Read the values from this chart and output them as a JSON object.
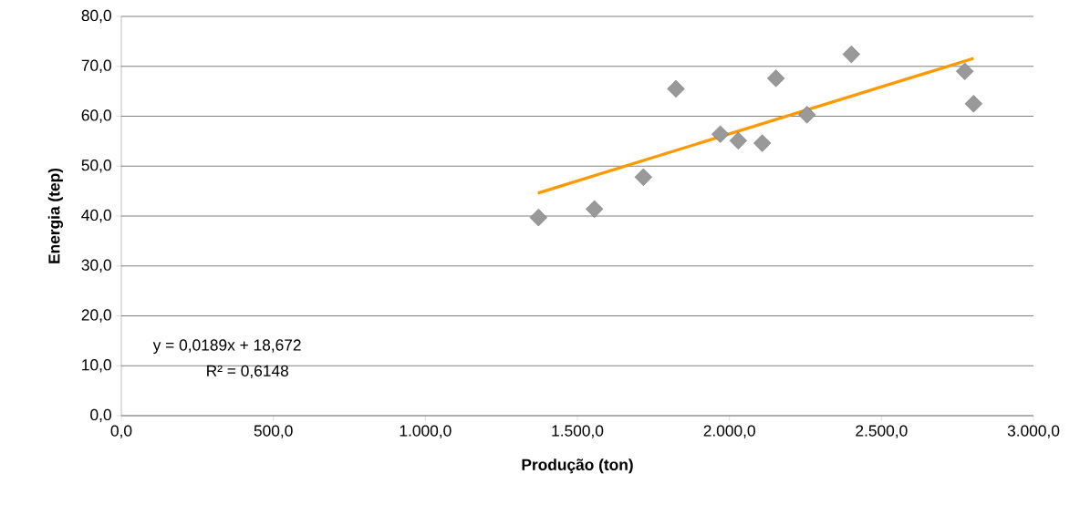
{
  "chart_data": {
    "type": "scatter",
    "xlabel": "Produção (ton)",
    "ylabel": "Energia (tep)",
    "series": [
      {
        "color": "#999999",
        "marker": "diamond",
        "x": [
          1372,
          1556,
          1717,
          1824,
          1970,
          2029,
          2108,
          2153,
          2255,
          2401,
          2774,
          2803
        ],
        "values": [
          39.7,
          41.4,
          47.8,
          65.5,
          56.4,
          55.1,
          54.6,
          67.6,
          60.3,
          72.4,
          69.0,
          62.5
        ]
      },
      {
        "type": "line",
        "color": "#ff9900",
        "x": [
          1370,
          2803
        ],
        "values": [
          44.6,
          71.6
        ]
      }
    ],
    "annotations": [
      "y = 0,0189x + 18,672",
      "R² = 0,6148"
    ],
    "xlim": [
      0,
      3000
    ],
    "ylim": [
      0,
      80
    ],
    "xticks": [
      {
        "value": 0,
        "label": "0,0"
      },
      {
        "value": 500,
        "label": "500,0"
      },
      {
        "value": 1000,
        "label": "1.000,0"
      },
      {
        "value": 1500,
        "label": "1.500,0"
      },
      {
        "value": 2000,
        "label": "2.000,0"
      },
      {
        "value": 2500,
        "label": "2.500,0"
      },
      {
        "value": 3000,
        "label": "3.000,0"
      }
    ],
    "yticks": [
      {
        "value": 0,
        "label": "0,0"
      },
      {
        "value": 10,
        "label": "10,0"
      },
      {
        "value": 20,
        "label": "20,0"
      },
      {
        "value": 30,
        "label": "30,0"
      },
      {
        "value": 40,
        "label": "40,0"
      },
      {
        "value": 50,
        "label": "50,0"
      },
      {
        "value": 60,
        "label": "60,0"
      },
      {
        "value": 70,
        "label": "70,0"
      },
      {
        "value": 80,
        "label": "80,0"
      }
    ],
    "grid": "y"
  }
}
